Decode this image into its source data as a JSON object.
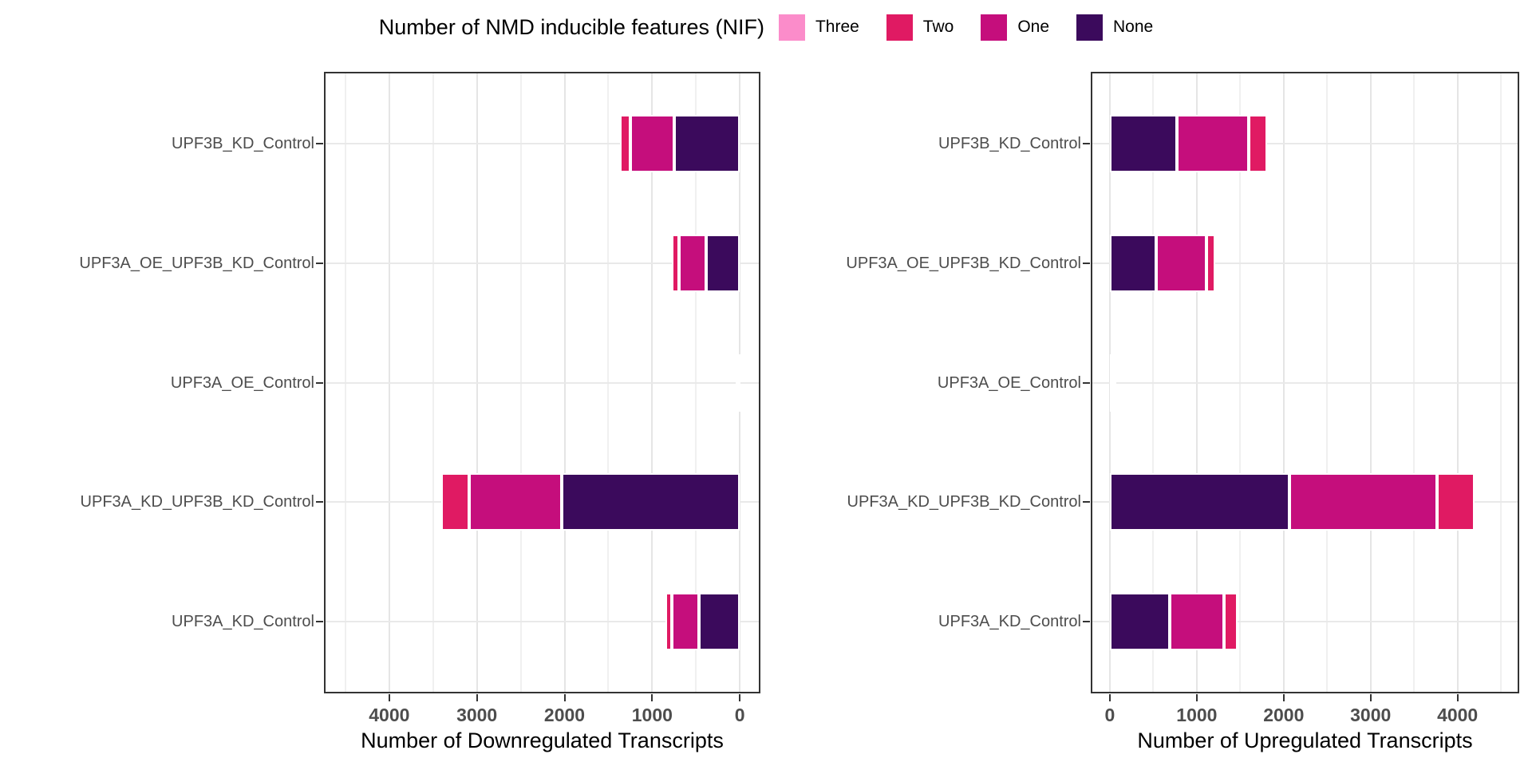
{
  "figure": {
    "legend": {
      "title": "Number of NMD inducible features (NIF)",
      "items": [
        {
          "label": "Three",
          "color": "#FB8CCA"
        },
        {
          "label": "Two",
          "color": "#E01A63"
        },
        {
          "label": "One",
          "color": "#C50E7C"
        },
        {
          "label": "None",
          "color": "#3B0A5C"
        }
      ]
    }
  },
  "chart_data": [
    {
      "type": "bar",
      "orientation": "horizontal",
      "stacked": true,
      "x_reversed": true,
      "xlabel": "Number of Downregulated Transcripts",
      "x_ticks": [
        4000,
        3000,
        2000,
        1000,
        0
      ],
      "x_minor_ticks": [
        4500,
        3500,
        2500,
        1500,
        500
      ],
      "x_domain": [
        -235,
        4745
      ],
      "grid": true,
      "legend_position": "top",
      "categories": [
        "UPF3B_KD_Control",
        "UPF3A_OE_UPF3B_KD_Control",
        "UPF3A_OE_Control",
        "UPF3A_KD_UPF3B_KD_Control",
        "UPF3A_KD_Control"
      ],
      "stack_order_from_zero": [
        "None",
        "One",
        "Two",
        "Three"
      ],
      "series": [
        {
          "name": "None",
          "values": [
            750,
            380,
            25,
            2030,
            465
          ]
        },
        {
          "name": "One",
          "values": [
            495,
            310,
            15,
            1055,
            315
          ]
        },
        {
          "name": "Two",
          "values": [
            120,
            90,
            5,
            320,
            70
          ]
        },
        {
          "name": "Three",
          "values": [
            0,
            0,
            0,
            0,
            0
          ]
        }
      ]
    },
    {
      "type": "bar",
      "orientation": "horizontal",
      "stacked": true,
      "x_reversed": false,
      "xlabel": "Number of Upregulated Transcripts",
      "x_ticks": [
        0,
        1000,
        2000,
        3000,
        4000
      ],
      "x_minor_ticks": [
        500,
        1500,
        2500,
        3500,
        4500
      ],
      "x_domain": [
        -220,
        4710
      ],
      "grid": true,
      "legend_position": "top",
      "categories": [
        "UPF3B_KD_Control",
        "UPF3A_OE_UPF3B_KD_Control",
        "UPF3A_OE_Control",
        "UPF3A_KD_UPF3B_KD_Control",
        "UPF3A_KD_Control"
      ],
      "stack_order_from_zero": [
        "None",
        "One",
        "Two",
        "Three"
      ],
      "series": [
        {
          "name": "None",
          "values": [
            770,
            535,
            25,
            2070,
            690
          ]
        },
        {
          "name": "One",
          "values": [
            830,
            575,
            15,
            1695,
            625
          ]
        },
        {
          "name": "Two",
          "values": [
            210,
            105,
            5,
            435,
            150
          ]
        },
        {
          "name": "Three",
          "values": [
            0,
            0,
            0,
            0,
            0
          ]
        }
      ]
    }
  ]
}
